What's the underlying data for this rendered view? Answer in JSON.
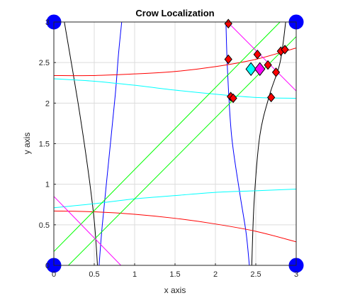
{
  "chart_data": {
    "type": "scatter",
    "title": "Crow Localization",
    "xlabel": "x axis",
    "ylabel": "y axis",
    "xlim": [
      0,
      3
    ],
    "ylim": [
      0,
      3
    ],
    "grid": true,
    "xticks": [
      "0",
      "0.5",
      "1",
      "1.5",
      "2",
      "2.5",
      "3"
    ],
    "yticks": [
      "0",
      "0.5",
      "1",
      "1.5",
      "2",
      "2.5",
      "3"
    ],
    "colors": {
      "black": "#000000",
      "blue": "#0000ff",
      "red": "#ff0000",
      "cyan": "#00ffff",
      "green": "#00ff00",
      "magenta": "#ff00ff",
      "anchor": "#0000ff",
      "candidate": "#ff0000"
    },
    "anchors": [
      {
        "x": 0,
        "y": 3
      },
      {
        "x": 3,
        "y": 3
      },
      {
        "x": 0,
        "y": 0
      },
      {
        "x": 3,
        "y": 0
      }
    ],
    "curves": [
      {
        "color": "black",
        "points": [
          [
            0.13,
            3.0
          ],
          [
            0.3,
            2.0
          ],
          [
            0.42,
            1.2
          ],
          [
            0.5,
            0.55
          ],
          [
            0.54,
            0.0
          ]
        ]
      },
      {
        "color": "black",
        "points": [
          [
            2.45,
            0.0
          ],
          [
            2.48,
            0.8
          ],
          [
            2.55,
            1.6
          ],
          [
            2.67,
            2.1
          ],
          [
            2.8,
            2.5
          ],
          [
            2.87,
            3.0
          ]
        ]
      },
      {
        "color": "blue",
        "points": [
          [
            0.56,
            0.0
          ],
          [
            0.6,
            0.5
          ],
          [
            0.68,
            1.3
          ],
          [
            0.76,
            2.1
          ],
          [
            0.8,
            2.6
          ],
          [
            0.84,
            3.0
          ]
        ]
      },
      {
        "color": "blue",
        "points": [
          [
            2.13,
            3.0
          ],
          [
            2.15,
            2.4
          ],
          [
            2.2,
            1.6
          ],
          [
            2.3,
            0.9
          ],
          [
            2.38,
            0.4
          ],
          [
            2.42,
            0.0
          ]
        ]
      },
      {
        "color": "red",
        "points": [
          [
            0.0,
            2.34
          ],
          [
            0.5,
            2.34
          ],
          [
            1.0,
            2.36
          ],
          [
            1.5,
            2.39
          ],
          [
            2.0,
            2.45
          ],
          [
            2.5,
            2.54
          ],
          [
            3.0,
            2.68
          ]
        ]
      },
      {
        "color": "red",
        "points": [
          [
            0.0,
            0.67
          ],
          [
            0.5,
            0.66
          ],
          [
            1.0,
            0.63
          ],
          [
            1.5,
            0.58
          ],
          [
            2.0,
            0.51
          ],
          [
            2.5,
            0.42
          ],
          [
            3.0,
            0.29
          ]
        ]
      },
      {
        "color": "cyan",
        "points": [
          [
            0.0,
            2.3
          ],
          [
            0.5,
            2.27
          ],
          [
            1.0,
            2.22
          ],
          [
            1.5,
            2.16
          ],
          [
            2.0,
            2.11
          ],
          [
            2.5,
            2.07
          ],
          [
            3.0,
            2.06
          ]
        ]
      },
      {
        "color": "cyan",
        "points": [
          [
            0.0,
            0.71
          ],
          [
            0.5,
            0.76
          ],
          [
            1.0,
            0.82
          ],
          [
            1.5,
            0.86
          ],
          [
            2.0,
            0.9
          ],
          [
            2.5,
            0.92
          ],
          [
            3.0,
            0.94
          ]
        ]
      },
      {
        "color": "green",
        "points": [
          [
            0.0,
            0.17
          ],
          [
            2.8,
            3.0
          ]
        ]
      },
      {
        "color": "green",
        "points": [
          [
            0.18,
            0.0
          ],
          [
            3.0,
            2.82
          ]
        ]
      },
      {
        "color": "magenta",
        "points": [
          [
            0.0,
            0.85
          ],
          [
            0.83,
            0.0
          ]
        ]
      },
      {
        "color": "magenta",
        "points": [
          [
            2.15,
            3.0
          ],
          [
            3.0,
            2.15
          ]
        ]
      }
    ],
    "candidates": [
      {
        "x": 2.16,
        "y": 2.98
      },
      {
        "x": 2.16,
        "y": 2.54
      },
      {
        "x": 2.52,
        "y": 2.6
      },
      {
        "x": 2.65,
        "y": 2.47
      },
      {
        "x": 2.75,
        "y": 2.38
      },
      {
        "x": 2.81,
        "y": 2.64
      },
      {
        "x": 2.86,
        "y": 2.66
      },
      {
        "x": 2.19,
        "y": 2.08
      },
      {
        "x": 2.22,
        "y": 2.06
      },
      {
        "x": 2.69,
        "y": 2.07
      }
    ],
    "estimates": [
      {
        "x": 2.44,
        "y": 2.42,
        "color": "#00ffff"
      },
      {
        "x": 2.55,
        "y": 2.42,
        "color": "#ff00ff"
      }
    ]
  }
}
